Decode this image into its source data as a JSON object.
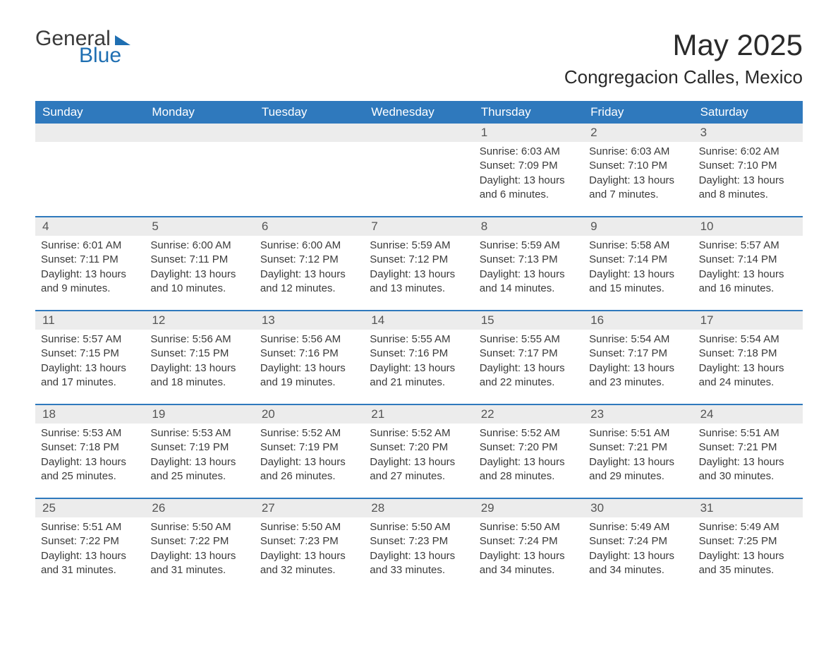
{
  "logo": {
    "word1": "General",
    "word2": "Blue"
  },
  "header": {
    "month_title": "May 2025",
    "location": "Congregacion Calles, Mexico"
  },
  "colors": {
    "header_bg": "#2f79bd",
    "header_text": "#ffffff",
    "row_border": "#2f79bd",
    "daynum_bg": "#ececec",
    "text": "#3a3a3a",
    "logo_blue": "#1f6fb2",
    "background": "#ffffff"
  },
  "weekdays": [
    "Sunday",
    "Monday",
    "Tuesday",
    "Wednesday",
    "Thursday",
    "Friday",
    "Saturday"
  ],
  "weeks": [
    [
      {
        "empty": true
      },
      {
        "empty": true
      },
      {
        "empty": true
      },
      {
        "empty": true
      },
      {
        "day": "1",
        "sunrise": "Sunrise: 6:03 AM",
        "sunset": "Sunset: 7:09 PM",
        "daylight1": "Daylight: 13 hours",
        "daylight2": "and 6 minutes."
      },
      {
        "day": "2",
        "sunrise": "Sunrise: 6:03 AM",
        "sunset": "Sunset: 7:10 PM",
        "daylight1": "Daylight: 13 hours",
        "daylight2": "and 7 minutes."
      },
      {
        "day": "3",
        "sunrise": "Sunrise: 6:02 AM",
        "sunset": "Sunset: 7:10 PM",
        "daylight1": "Daylight: 13 hours",
        "daylight2": "and 8 minutes."
      }
    ],
    [
      {
        "day": "4",
        "sunrise": "Sunrise: 6:01 AM",
        "sunset": "Sunset: 7:11 PM",
        "daylight1": "Daylight: 13 hours",
        "daylight2": "and 9 minutes."
      },
      {
        "day": "5",
        "sunrise": "Sunrise: 6:00 AM",
        "sunset": "Sunset: 7:11 PM",
        "daylight1": "Daylight: 13 hours",
        "daylight2": "and 10 minutes."
      },
      {
        "day": "6",
        "sunrise": "Sunrise: 6:00 AM",
        "sunset": "Sunset: 7:12 PM",
        "daylight1": "Daylight: 13 hours",
        "daylight2": "and 12 minutes."
      },
      {
        "day": "7",
        "sunrise": "Sunrise: 5:59 AM",
        "sunset": "Sunset: 7:12 PM",
        "daylight1": "Daylight: 13 hours",
        "daylight2": "and 13 minutes."
      },
      {
        "day": "8",
        "sunrise": "Sunrise: 5:59 AM",
        "sunset": "Sunset: 7:13 PM",
        "daylight1": "Daylight: 13 hours",
        "daylight2": "and 14 minutes."
      },
      {
        "day": "9",
        "sunrise": "Sunrise: 5:58 AM",
        "sunset": "Sunset: 7:14 PM",
        "daylight1": "Daylight: 13 hours",
        "daylight2": "and 15 minutes."
      },
      {
        "day": "10",
        "sunrise": "Sunrise: 5:57 AM",
        "sunset": "Sunset: 7:14 PM",
        "daylight1": "Daylight: 13 hours",
        "daylight2": "and 16 minutes."
      }
    ],
    [
      {
        "day": "11",
        "sunrise": "Sunrise: 5:57 AM",
        "sunset": "Sunset: 7:15 PM",
        "daylight1": "Daylight: 13 hours",
        "daylight2": "and 17 minutes."
      },
      {
        "day": "12",
        "sunrise": "Sunrise: 5:56 AM",
        "sunset": "Sunset: 7:15 PM",
        "daylight1": "Daylight: 13 hours",
        "daylight2": "and 18 minutes."
      },
      {
        "day": "13",
        "sunrise": "Sunrise: 5:56 AM",
        "sunset": "Sunset: 7:16 PM",
        "daylight1": "Daylight: 13 hours",
        "daylight2": "and 19 minutes."
      },
      {
        "day": "14",
        "sunrise": "Sunrise: 5:55 AM",
        "sunset": "Sunset: 7:16 PM",
        "daylight1": "Daylight: 13 hours",
        "daylight2": "and 21 minutes."
      },
      {
        "day": "15",
        "sunrise": "Sunrise: 5:55 AM",
        "sunset": "Sunset: 7:17 PM",
        "daylight1": "Daylight: 13 hours",
        "daylight2": "and 22 minutes."
      },
      {
        "day": "16",
        "sunrise": "Sunrise: 5:54 AM",
        "sunset": "Sunset: 7:17 PM",
        "daylight1": "Daylight: 13 hours",
        "daylight2": "and 23 minutes."
      },
      {
        "day": "17",
        "sunrise": "Sunrise: 5:54 AM",
        "sunset": "Sunset: 7:18 PM",
        "daylight1": "Daylight: 13 hours",
        "daylight2": "and 24 minutes."
      }
    ],
    [
      {
        "day": "18",
        "sunrise": "Sunrise: 5:53 AM",
        "sunset": "Sunset: 7:18 PM",
        "daylight1": "Daylight: 13 hours",
        "daylight2": "and 25 minutes."
      },
      {
        "day": "19",
        "sunrise": "Sunrise: 5:53 AM",
        "sunset": "Sunset: 7:19 PM",
        "daylight1": "Daylight: 13 hours",
        "daylight2": "and 25 minutes."
      },
      {
        "day": "20",
        "sunrise": "Sunrise: 5:52 AM",
        "sunset": "Sunset: 7:19 PM",
        "daylight1": "Daylight: 13 hours",
        "daylight2": "and 26 minutes."
      },
      {
        "day": "21",
        "sunrise": "Sunrise: 5:52 AM",
        "sunset": "Sunset: 7:20 PM",
        "daylight1": "Daylight: 13 hours",
        "daylight2": "and 27 minutes."
      },
      {
        "day": "22",
        "sunrise": "Sunrise: 5:52 AM",
        "sunset": "Sunset: 7:20 PM",
        "daylight1": "Daylight: 13 hours",
        "daylight2": "and 28 minutes."
      },
      {
        "day": "23",
        "sunrise": "Sunrise: 5:51 AM",
        "sunset": "Sunset: 7:21 PM",
        "daylight1": "Daylight: 13 hours",
        "daylight2": "and 29 minutes."
      },
      {
        "day": "24",
        "sunrise": "Sunrise: 5:51 AM",
        "sunset": "Sunset: 7:21 PM",
        "daylight1": "Daylight: 13 hours",
        "daylight2": "and 30 minutes."
      }
    ],
    [
      {
        "day": "25",
        "sunrise": "Sunrise: 5:51 AM",
        "sunset": "Sunset: 7:22 PM",
        "daylight1": "Daylight: 13 hours",
        "daylight2": "and 31 minutes."
      },
      {
        "day": "26",
        "sunrise": "Sunrise: 5:50 AM",
        "sunset": "Sunset: 7:22 PM",
        "daylight1": "Daylight: 13 hours",
        "daylight2": "and 31 minutes."
      },
      {
        "day": "27",
        "sunrise": "Sunrise: 5:50 AM",
        "sunset": "Sunset: 7:23 PM",
        "daylight1": "Daylight: 13 hours",
        "daylight2": "and 32 minutes."
      },
      {
        "day": "28",
        "sunrise": "Sunrise: 5:50 AM",
        "sunset": "Sunset: 7:23 PM",
        "daylight1": "Daylight: 13 hours",
        "daylight2": "and 33 minutes."
      },
      {
        "day": "29",
        "sunrise": "Sunrise: 5:50 AM",
        "sunset": "Sunset: 7:24 PM",
        "daylight1": "Daylight: 13 hours",
        "daylight2": "and 34 minutes."
      },
      {
        "day": "30",
        "sunrise": "Sunrise: 5:49 AM",
        "sunset": "Sunset: 7:24 PM",
        "daylight1": "Daylight: 13 hours",
        "daylight2": "and 34 minutes."
      },
      {
        "day": "31",
        "sunrise": "Sunrise: 5:49 AM",
        "sunset": "Sunset: 7:25 PM",
        "daylight1": "Daylight: 13 hours",
        "daylight2": "and 35 minutes."
      }
    ]
  ]
}
